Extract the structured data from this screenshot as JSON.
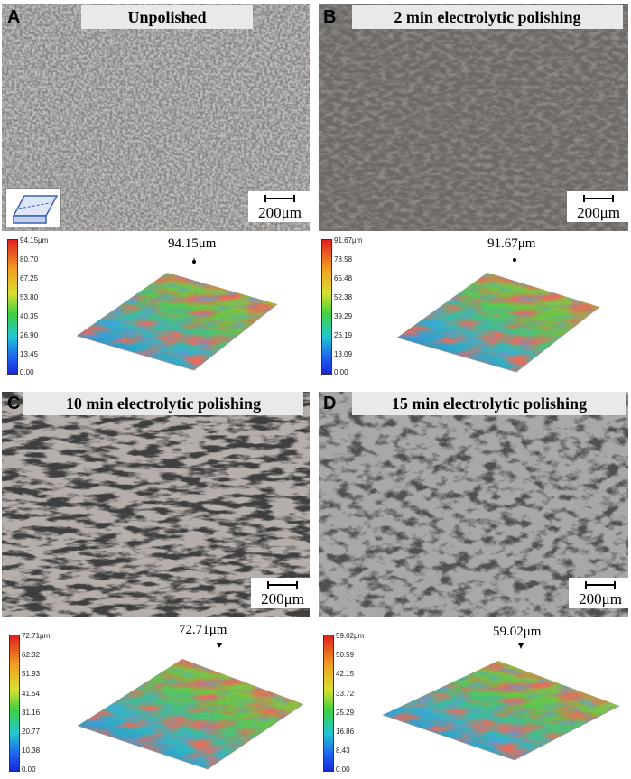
{
  "panels": [
    {
      "letter": "A",
      "title": "Unpolished",
      "scale_label": "200μm",
      "peak_label": "94.15μm",
      "colorbar_ticks": [
        "94.15μm",
        "80.70",
        "67.25",
        "53.80",
        "40.35",
        "26.90",
        "13.45",
        "0.00"
      ]
    },
    {
      "letter": "B",
      "title": "2 min electrolytic polishing",
      "scale_label": "200μm",
      "peak_label": "91.67μm",
      "colorbar_ticks": [
        "91.67μm",
        "78.58",
        "65.48",
        "52.38",
        "39.29",
        "26.19",
        "13.09",
        "0.00"
      ]
    },
    {
      "letter": "C",
      "title": "10 min electrolytic polishing",
      "scale_label": "200μm",
      "peak_label": "72.71μm",
      "colorbar_ticks": [
        "72.71μm",
        "62.32",
        "51.93",
        "41.54",
        "31.16",
        "20.77",
        "10.38",
        "0.00"
      ]
    },
    {
      "letter": "D",
      "title": "15 min electrolytic polishing",
      "scale_label": "200μm",
      "peak_label": "59.02μm",
      "colorbar_ticks": [
        "59.02μm",
        "50.59",
        "42.15",
        "33.72",
        "25.29",
        "16.86",
        "8.43",
        "0.00"
      ]
    }
  ],
  "colors": {
    "micrograph_dark": "#2a2a2a",
    "micrograph_light": "#c8c8c8",
    "surface_high": "#d03020",
    "surface_mid": "#40c050",
    "surface_low": "#2050d0"
  }
}
